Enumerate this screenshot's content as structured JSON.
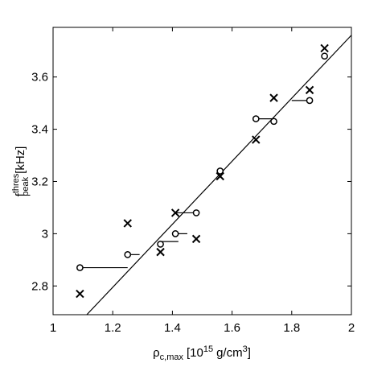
{
  "chart_data": {
    "type": "scatter",
    "title": "",
    "xlabel": {
      "base": "ρ",
      "sub": "c,max",
      "unit_prefix": "[10",
      "exp": "15",
      "unit_mid": "g/cm",
      "unit_exp": "3",
      "unit_suffix": "]"
    },
    "ylabel": {
      "base": "f",
      "sup": "thres",
      "sub": "peak",
      "unit": "[kHz]"
    },
    "xlim": [
      1.0,
      2.0
    ],
    "ylim": [
      2.69,
      3.79
    ],
    "xticks": [
      1.0,
      1.2,
      1.4,
      1.6,
      1.8,
      2.0
    ],
    "xtick_labels": [
      "1",
      "1.2",
      "1.4",
      "1.6",
      "1.8",
      "2"
    ],
    "yticks": [
      2.8,
      3.0,
      3.2,
      3.4,
      3.6
    ],
    "ytick_labels": [
      "2.8",
      "3",
      "3.2",
      "3.4",
      "3.6"
    ],
    "grid": false,
    "legend": "none",
    "series": [
      {
        "marker": "circle",
        "points": [
          {
            "x": 1.09,
            "y": 2.87
          },
          {
            "x": 1.25,
            "y": 2.92
          },
          {
            "x": 1.36,
            "y": 2.96
          },
          {
            "x": 1.41,
            "y": 3.0
          },
          {
            "x": 1.48,
            "y": 3.08
          },
          {
            "x": 1.56,
            "y": 3.24
          },
          {
            "x": 1.68,
            "y": 3.44
          },
          {
            "x": 1.74,
            "y": 3.43
          },
          {
            "x": 1.86,
            "y": 3.51
          },
          {
            "x": 1.91,
            "y": 3.68
          }
        ]
      },
      {
        "marker": "x",
        "points": [
          {
            "x": 1.09,
            "y": 2.77
          },
          {
            "x": 1.25,
            "y": 3.04
          },
          {
            "x": 1.36,
            "y": 2.93
          },
          {
            "x": 1.41,
            "y": 3.08
          },
          {
            "x": 1.48,
            "y": 2.98
          },
          {
            "x": 1.56,
            "y": 3.22
          },
          {
            "x": 1.68,
            "y": 3.36
          },
          {
            "x": 1.74,
            "y": 3.52
          },
          {
            "x": 1.86,
            "y": 3.55
          },
          {
            "x": 1.91,
            "y": 3.71
          }
        ]
      }
    ],
    "connectors": [
      {
        "x1": 1.09,
        "x2": 1.25,
        "y": 2.87
      },
      {
        "x1": 1.25,
        "x2": 1.29,
        "y": 2.92
      },
      {
        "x1": 1.36,
        "x2": 1.42,
        "y": 2.97
      },
      {
        "x1": 1.41,
        "x2": 1.45,
        "y": 3.0
      },
      {
        "x1": 1.41,
        "x2": 1.48,
        "y": 3.08
      },
      {
        "x1": 1.68,
        "x2": 1.74,
        "y": 3.44
      },
      {
        "x1": 1.8,
        "x2": 1.86,
        "y": 3.51
      }
    ],
    "fit_line": {
      "x1": 1.113,
      "y1": 2.69,
      "x2": 2.0,
      "y2": 3.76
    }
  }
}
